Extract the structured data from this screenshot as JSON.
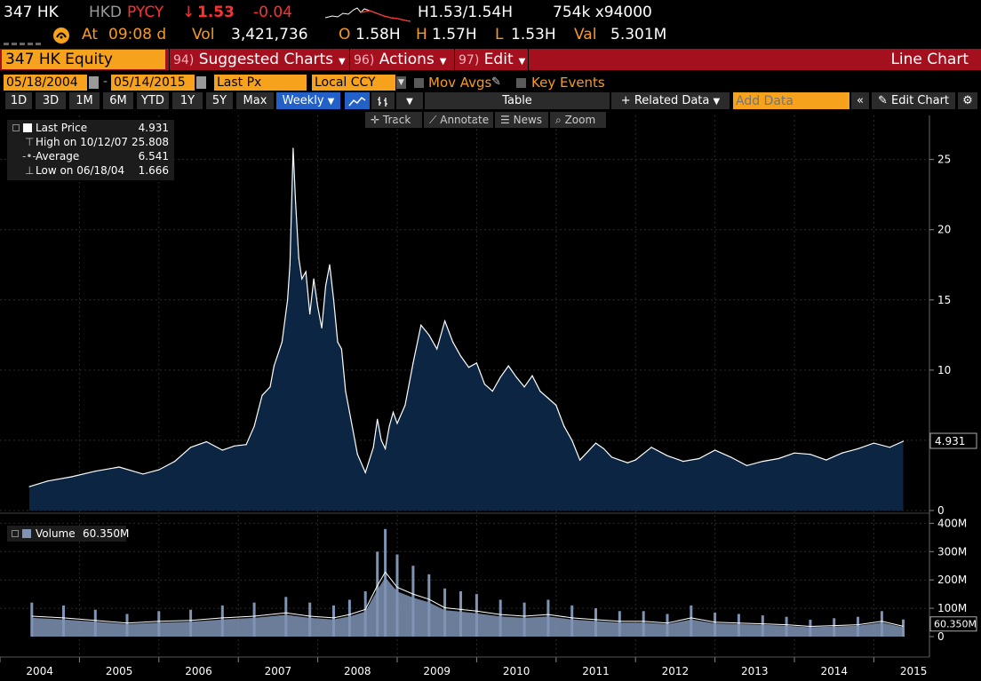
{
  "quote": {
    "ticker": "347 HK",
    "currency": "HKD",
    "pycy": "PYCY",
    "arrow": "↓",
    "last": "1.53",
    "change": "-0.04",
    "high_low": "H1.53/1.54H",
    "size": "754k x94000",
    "at_label": "At",
    "time": "09:08 d",
    "vol_label": "Vol",
    "volume": "3,421,736",
    "open_label": "O",
    "open": "1.58H",
    "high_label": "H",
    "high": "1.57H",
    "low_label": "L",
    "low": "1.53H",
    "val_label": "Val",
    "value": "5.301M"
  },
  "toolbar": {
    "security": "347 HK Equity",
    "suggested_num": "94)",
    "suggested_label": "Suggested Charts",
    "actions_num": "96)",
    "actions_label": "Actions",
    "edit_num": "97)",
    "edit_label": "Edit",
    "chart_type": "Line Chart"
  },
  "params": {
    "start_date": "05/18/2004",
    "end_date": "05/14/2015",
    "field": "Last Px",
    "currency": "Local CCY",
    "mov_avgs": "Mov Avgs",
    "key_events": "Key Events"
  },
  "ranges": {
    "buttons": [
      "1D",
      "3D",
      "1M",
      "6M",
      "YTD",
      "1Y",
      "5Y",
      "Max"
    ],
    "period": "Weekly",
    "table": "Table",
    "related_data": "Related Data",
    "add_data_placeholder": "Add Data",
    "edit_chart": "Edit Chart"
  },
  "tools": {
    "track": "Track",
    "annotate": "Annotate",
    "news": "News",
    "zoom": "Zoom"
  },
  "legend": {
    "last_price_label": "Last Price",
    "last_price": "4.931",
    "high_label": "High on 10/12/07",
    "high": "25.808",
    "average_label": "Average",
    "average": "6.541",
    "low_label": "Low on 06/18/04",
    "low": "1.666"
  },
  "colors": {
    "price_fill": "#0b2543",
    "price_line": "#ffffff",
    "volume_bars": "#7f93b5",
    "accent_orange": "#f6a21c",
    "function_bar": "#a5101f",
    "down_red": "#ff3030"
  },
  "chart_data": [
    {
      "type": "area",
      "series": [
        {
          "name": "Last Price",
          "x": [
            2004.37,
            2004.6,
            2004.9,
            2005.2,
            2005.5,
            2005.8,
            2006.0,
            2006.2,
            2006.4,
            2006.6,
            2006.8,
            2006.95,
            2007.1,
            2007.2,
            2007.3,
            2007.4,
            2007.45,
            2007.55,
            2007.62,
            2007.65,
            2007.69,
            2007.72,
            2007.76,
            2007.8,
            2007.85,
            2007.9,
            2007.95,
            2008.0,
            2008.05,
            2008.1,
            2008.15,
            2008.2,
            2008.25,
            2008.3,
            2008.35,
            2008.4,
            2008.5,
            2008.6,
            2008.7,
            2008.75,
            2008.8,
            2008.85,
            2008.9,
            2008.95,
            2009.0,
            2009.1,
            2009.2,
            2009.3,
            2009.4,
            2009.5,
            2009.6,
            2009.7,
            2009.8,
            2009.9,
            2010.0,
            2010.1,
            2010.2,
            2010.3,
            2010.4,
            2010.5,
            2010.6,
            2010.7,
            2010.8,
            2010.9,
            2011.0,
            2011.1,
            2011.2,
            2011.3,
            2011.4,
            2011.5,
            2011.6,
            2011.7,
            2011.8,
            2011.9,
            2012.0,
            2012.2,
            2012.4,
            2012.6,
            2012.8,
            2013.0,
            2013.2,
            2013.4,
            2013.6,
            2013.8,
            2014.0,
            2014.2,
            2014.4,
            2014.6,
            2014.8,
            2015.0,
            2015.2,
            2015.37
          ],
          "values": [
            1.7,
            2.1,
            2.4,
            2.8,
            3.1,
            2.6,
            2.9,
            3.5,
            4.5,
            4.9,
            4.3,
            4.6,
            4.7,
            6.0,
            8.2,
            8.8,
            10.3,
            12.0,
            15.0,
            17.5,
            25.8,
            22.0,
            18.0,
            16.5,
            17.0,
            14.0,
            16.5,
            14.5,
            13.0,
            16.0,
            17.5,
            15.0,
            12.0,
            11.5,
            8.5,
            7.0,
            4.0,
            2.7,
            4.5,
            6.5,
            5.0,
            4.4,
            6.0,
            7.0,
            6.2,
            7.5,
            10.5,
            13.2,
            12.5,
            11.5,
            13.5,
            12.0,
            11.0,
            10.2,
            10.5,
            9.0,
            8.5,
            9.5,
            10.3,
            9.5,
            8.8,
            9.6,
            8.5,
            8.0,
            7.5,
            6.0,
            5.0,
            3.6,
            4.2,
            4.8,
            4.4,
            3.8,
            3.6,
            3.4,
            3.6,
            4.5,
            3.9,
            3.5,
            3.7,
            4.3,
            3.8,
            3.2,
            3.5,
            3.7,
            4.1,
            4.0,
            3.6,
            4.1,
            4.4,
            4.8,
            4.5,
            4.931
          ]
        }
      ],
      "ylim": [
        0,
        27
      ],
      "yticks": [
        0,
        5,
        10,
        15,
        20,
        25
      ],
      "xticks": [
        "2004",
        "2005",
        "2006",
        "2007",
        "2008",
        "2009",
        "2010",
        "2011",
        "2012",
        "2013",
        "2014",
        "2015"
      ],
      "last_value_label": "4.931",
      "grid": true
    },
    {
      "type": "bar",
      "series": [
        {
          "name": "Volume",
          "current": "60.350M",
          "x": [
            2004.4,
            2004.8,
            2005.2,
            2005.6,
            2006.0,
            2006.4,
            2006.8,
            2007.2,
            2007.6,
            2007.9,
            2008.2,
            2008.4,
            2008.6,
            2008.75,
            2008.85,
            2009.0,
            2009.2,
            2009.4,
            2009.6,
            2009.8,
            2010.0,
            2010.3,
            2010.6,
            2010.9,
            2011.2,
            2011.5,
            2011.8,
            2012.1,
            2012.4,
            2012.7,
            2013.0,
            2013.3,
            2013.6,
            2013.9,
            2014.2,
            2014.5,
            2014.8,
            2015.1,
            2015.37
          ],
          "values": [
            120,
            110,
            95,
            80,
            90,
            95,
            110,
            120,
            140,
            120,
            110,
            130,
            160,
            300,
            380,
            290,
            250,
            220,
            170,
            160,
            150,
            130,
            120,
            130,
            110,
            100,
            90,
            90,
            80,
            110,
            85,
            80,
            75,
            70,
            60,
            65,
            70,
            90,
            60.35
          ]
        }
      ],
      "ylim": [
        0,
        420
      ],
      "yticks": [
        "0",
        "100M",
        "200M",
        "300M",
        "400M"
      ],
      "last_value_label": "60.350M"
    }
  ]
}
